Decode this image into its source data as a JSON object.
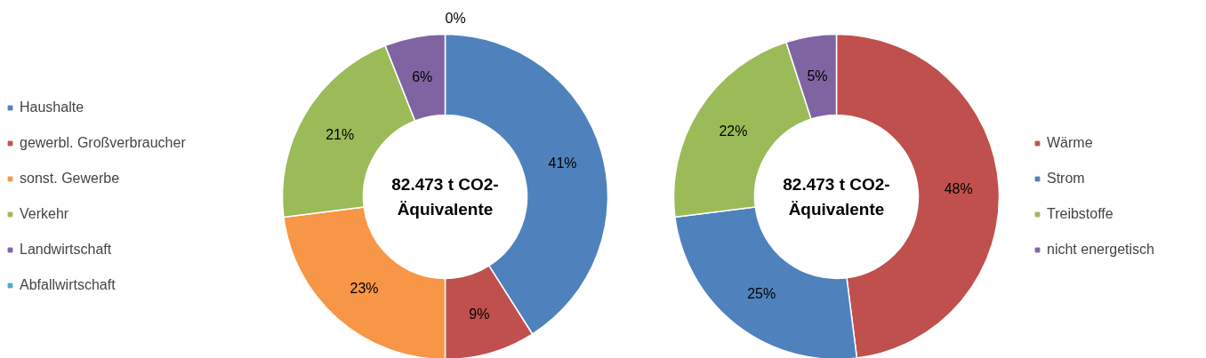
{
  "chart_data": [
    {
      "type": "donut",
      "categories": [
        "Haushalte",
        "gewerbl. Großverbraucher",
        "sonst. Gewerbe",
        "Verkehr",
        "Landwirtschaft",
        "Abfallwirtschaft"
      ],
      "values": [
        41,
        9,
        23,
        21,
        6,
        0
      ],
      "colors": [
        "#4f81bd",
        "#c0504d",
        "#f79646",
        "#9bbb59",
        "#8064a2",
        "#4bacc6"
      ],
      "value_labels": [
        "41%",
        "9%",
        "23%",
        "21%",
        "6%",
        "0%"
      ],
      "annotations": [
        "82.473 t CO2-Äquivalente"
      ],
      "legend": "left"
    },
    {
      "type": "donut",
      "categories": [
        "Wärme",
        "Strom",
        "Treibstoffe",
        "nicht energetisch"
      ],
      "values": [
        48,
        25,
        22,
        5
      ],
      "colors": [
        "#c0504d",
        "#4f81bd",
        "#9bbb59",
        "#8064a2"
      ],
      "value_labels": [
        "48%",
        "25%",
        "22%",
        "5%"
      ],
      "annotations": [
        "82.473 t CO2-Äquivalente"
      ],
      "legend": "right"
    }
  ]
}
